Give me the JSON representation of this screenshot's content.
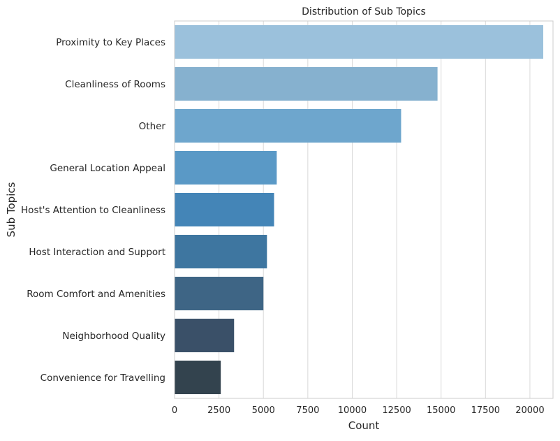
{
  "chart_data": {
    "type": "bar",
    "orientation": "horizontal",
    "title": "Distribution of Sub Topics",
    "xlabel": "Count",
    "ylabel": "Sub Topics",
    "xlim": [
      0,
      21300
    ],
    "xticks": [
      0,
      2500,
      5000,
      7500,
      10000,
      12500,
      15000,
      17500,
      20000
    ],
    "grid": "vertical",
    "categories": [
      "Proximity to Key Places",
      "Cleanliness of Rooms",
      "Other",
      "General Location Appeal",
      "Host's Attention to Cleanliness",
      "Host Interaction and Support",
      "Room Comfort and Amenities",
      "Neighborhood Quality",
      "Convenience for Travelling"
    ],
    "values": [
      20750,
      14800,
      12750,
      5750,
      5600,
      5200,
      5000,
      3350,
      2600
    ],
    "colors": [
      "#9bc1dc",
      "#86b1cf",
      "#6ea6cd",
      "#5a99c6",
      "#4485b7",
      "#3e76a0",
      "#3e6585",
      "#3a5068",
      "#33434e"
    ]
  }
}
